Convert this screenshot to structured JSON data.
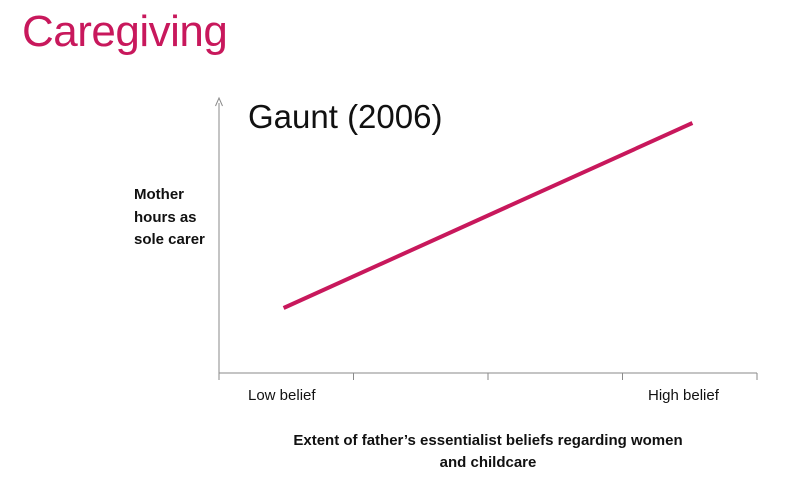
{
  "slide": {
    "title": "Caregiving",
    "accent_color": "#C8185C"
  },
  "chart_data": {
    "type": "line",
    "title": "Gaunt (2006)",
    "ylabel": "Mother\nhours as\nsole carer",
    "xlabel": "Extent of father’s essentialist beliefs regarding women\nand childcare",
    "categories": [
      "Low belief",
      "High belief"
    ],
    "x_tick_count": 5,
    "series": [
      {
        "color": "#C8185C",
        "x": [
          0.12,
          0.88
        ],
        "y": [
          0.26,
          1.0
        ]
      }
    ],
    "xlim": [
      0,
      1
    ],
    "ylim": [
      0,
      1.08
    ],
    "grid": false,
    "legend": "none"
  }
}
